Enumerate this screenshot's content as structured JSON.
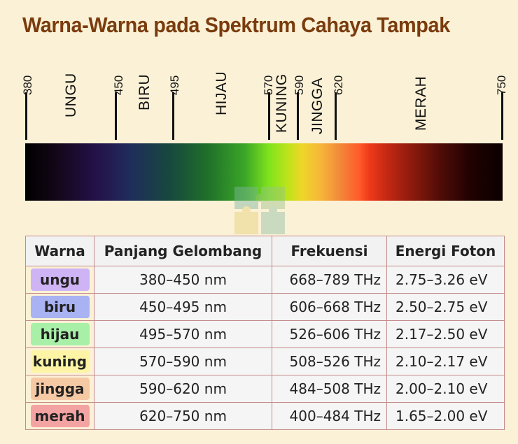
{
  "title": "Warna-Warna pada Spektrum Cahaya Tampak",
  "scale": {
    "ticks": [
      {
        "value": "380",
        "nm": 380
      },
      {
        "value": "450",
        "nm": 450
      },
      {
        "value": "495",
        "nm": 495
      },
      {
        "value": "570",
        "nm": 570
      },
      {
        "value": "590",
        "nm": 590
      },
      {
        "value": "620",
        "nm": 620
      },
      {
        "value": "750",
        "nm": 750
      }
    ],
    "bands": [
      {
        "name": "UNGU"
      },
      {
        "name": "BIRU"
      },
      {
        "name": "HIJAU"
      },
      {
        "name": "KUNING"
      },
      {
        "name": "JINGGA"
      },
      {
        "name": "MERAH"
      }
    ]
  },
  "table": {
    "headers": [
      "Warna",
      "Panjang Gelombang",
      "Frekuensi",
      "Energi Foton"
    ],
    "rows": [
      {
        "warna": "ungu",
        "panjang": "380–450  nm",
        "frekuensi": "668–789  THz",
        "energi": "2.75–3.26  eV",
        "color": "#cfb4f5"
      },
      {
        "warna": "biru",
        "panjang": "450–495  nm",
        "frekuensi": "606–668  THz",
        "energi": "2.50–2.75  eV",
        "color": "#a9b2f3"
      },
      {
        "warna": "hijau",
        "panjang": "495–570  nm",
        "frekuensi": "526–606  THz",
        "energi": "2.17–2.50  eV",
        "color": "#a8f0a8"
      },
      {
        "warna": "kuning",
        "panjang": "570–590  nm",
        "frekuensi": "508–526  THz",
        "energi": "2.10–2.17  eV",
        "color": "#fdf5a5"
      },
      {
        "warna": "jingga",
        "panjang": "590–620  nm",
        "frekuensi": "484–508  THz",
        "energi": "2.00–2.10  eV",
        "color": "#f6c9a5"
      },
      {
        "warna": "merah",
        "panjang": "620–750  nm",
        "frekuensi": "400–484  THz",
        "energi": "1.65–2.00  eV",
        "color": "#f4a3a3"
      }
    ]
  },
  "colors": {
    "title": "#7a3c0e",
    "background": "#fbf1d6",
    "table_border": "#c48a8a"
  },
  "icons": {
    "watermark": "puzzle-logo-icon"
  }
}
